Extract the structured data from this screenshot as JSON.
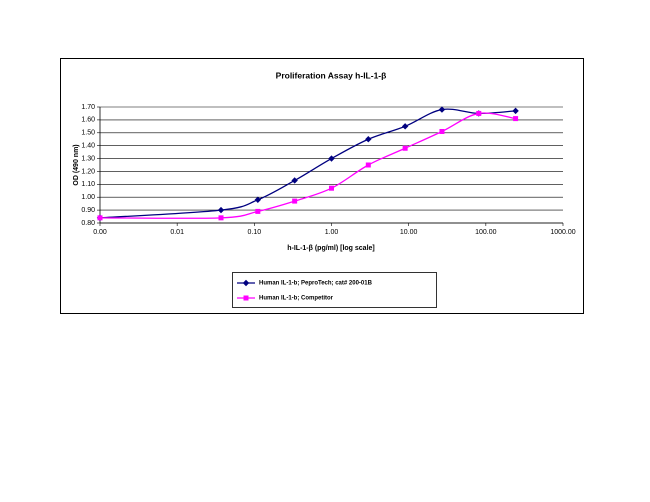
{
  "chart_data": {
    "type": "line",
    "title": "Proliferation Assay h-IL-1-β",
    "x_label": "h-IL-1-β (pg/ml) [log scale]",
    "y_label": "OD (490 nm)",
    "x_scale": "log",
    "grid": true,
    "x": [
      0.001,
      0.037,
      0.111,
      0.333,
      1,
      3,
      9,
      27,
      81,
      243
    ],
    "series": [
      {
        "name": "Human IL-1-b; PeproTech; cat# 200-01B",
        "color": "#000080",
        "marker": "diamond",
        "values": [
          0.84,
          0.9,
          0.98,
          1.13,
          1.3,
          1.45,
          1.55,
          1.68,
          1.65,
          1.67
        ]
      },
      {
        "name": "Human IL-1-b; Competitor",
        "color": "#ff00ff",
        "marker": "square",
        "values": [
          0.84,
          0.84,
          0.89,
          0.97,
          1.07,
          1.25,
          1.38,
          1.51,
          1.65,
          1.61
        ]
      }
    ],
    "xlim": [
      0.001,
      1000
    ],
    "xticks": [
      {
        "value": 0.001,
        "label": "0.00"
      },
      {
        "value": 0.01,
        "label": "0.01"
      },
      {
        "value": 0.1,
        "label": "0.10"
      },
      {
        "value": 1,
        "label": "1.00"
      },
      {
        "value": 10,
        "label": "10.00"
      },
      {
        "value": 100,
        "label": "100.00"
      },
      {
        "value": 1000,
        "label": "1000.00"
      }
    ],
    "ylim": [
      0.8,
      1.7
    ],
    "yticks": [
      {
        "value": 0.8,
        "label": "0.80"
      },
      {
        "value": 0.9,
        "label": "0.90"
      },
      {
        "value": 1.0,
        "label": "1.00"
      },
      {
        "value": 1.1,
        "label": "1.10"
      },
      {
        "value": 1.2,
        "label": "1.20"
      },
      {
        "value": 1.3,
        "label": "1.30"
      },
      {
        "value": 1.4,
        "label": "1.40"
      },
      {
        "value": 1.5,
        "label": "1.50"
      },
      {
        "value": 1.6,
        "label": "1.60"
      },
      {
        "value": 1.7,
        "label": "1.70"
      }
    ]
  }
}
